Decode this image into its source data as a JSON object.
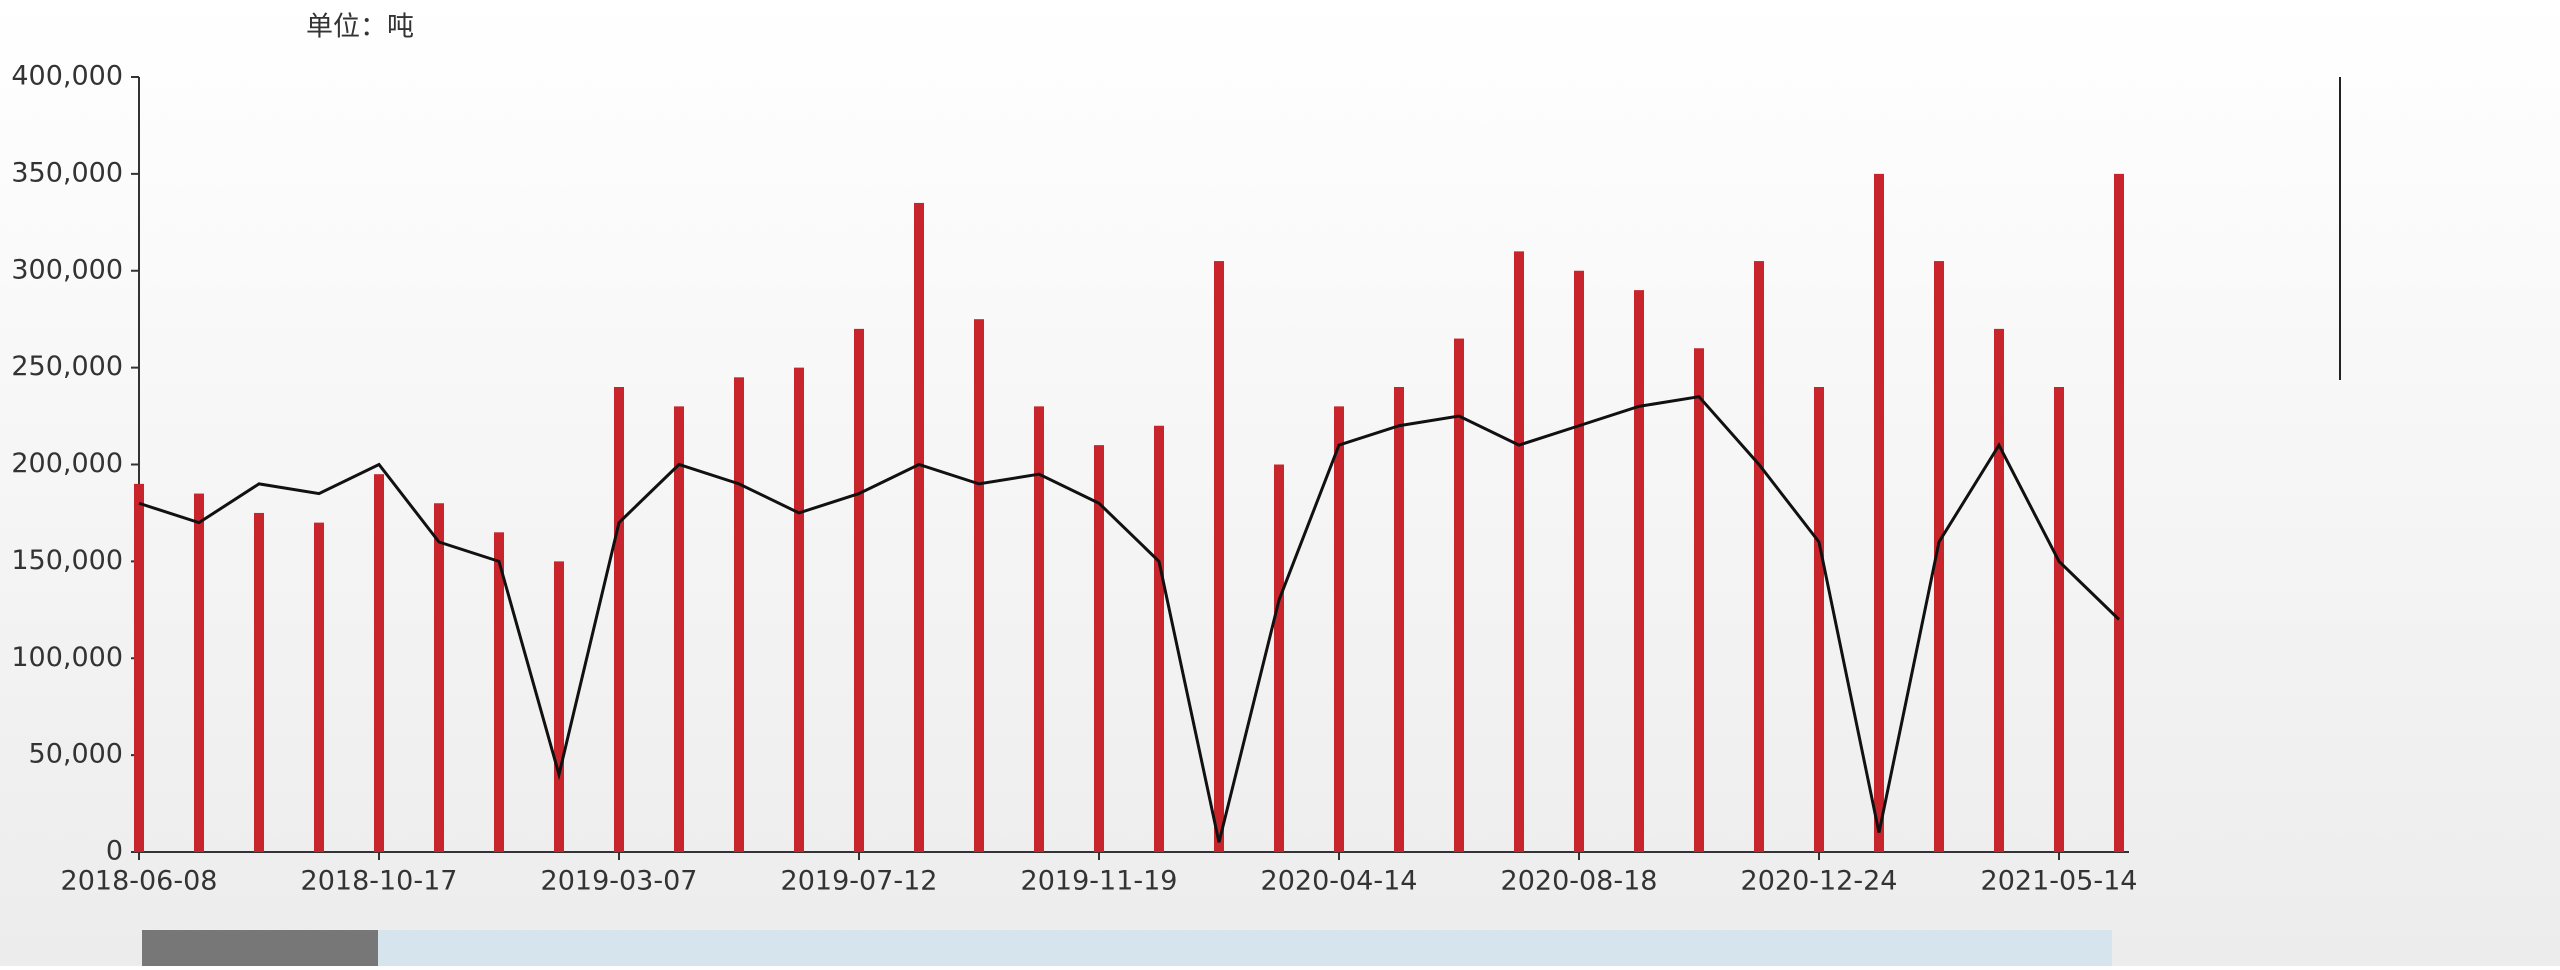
{
  "chart_data": {
    "type": "line",
    "unit_label": "单位：吨",
    "categories": [
      "2018-06-08",
      null,
      null,
      null,
      "2018-10-17",
      null,
      null,
      null,
      "2019-03-07",
      null,
      null,
      null,
      "2019-07-12",
      null,
      null,
      null,
      "2019-11-19",
      null,
      null,
      null,
      "2020-04-14",
      null,
      null,
      null,
      "2020-08-18",
      null,
      null,
      null,
      "2020-12-24",
      null,
      null,
      null,
      "2021-05-14",
      null
    ],
    "series": [
      {
        "type": "bar",
        "color": "#c8242c",
        "values": [
          190000,
          185000,
          175000,
          170000,
          195000,
          180000,
          165000,
          150000,
          240000,
          230000,
          245000,
          250000,
          270000,
          335000,
          275000,
          230000,
          210000,
          220000,
          305000,
          200000,
          230000,
          240000,
          265000,
          310000,
          300000,
          290000,
          260000,
          305000,
          240000,
          350000,
          305000,
          270000,
          240000,
          350000
        ]
      },
      {
        "type": "line",
        "color": "#111111",
        "values": [
          180000,
          170000,
          190000,
          185000,
          200000,
          160000,
          150000,
          40000,
          170000,
          200000,
          190000,
          175000,
          185000,
          200000,
          190000,
          195000,
          180000,
          150000,
          5000,
          130000,
          210000,
          220000,
          225000,
          210000,
          220000,
          230000,
          235000,
          200000,
          160000,
          10000,
          160000,
          210000,
          150000,
          120000
        ]
      }
    ],
    "ylim": [
      0,
      400000
    ],
    "yticks": [
      0,
      {
        "value": 50000,
        "label": "50,000"
      },
      {
        "value": 100000,
        "label": "100,000"
      },
      {
        "value": 150000,
        "label": "150,000"
      },
      {
        "value": 200000,
        "label": "200,000"
      },
      {
        "value": 250000,
        "label": "250,000"
      },
      {
        "value": 300000,
        "label": "300,000"
      },
      {
        "value": 350000,
        "label": "350,000"
      },
      {
        "value": 400000,
        "label": "400,000"
      }
    ],
    "grid": false
  }
}
